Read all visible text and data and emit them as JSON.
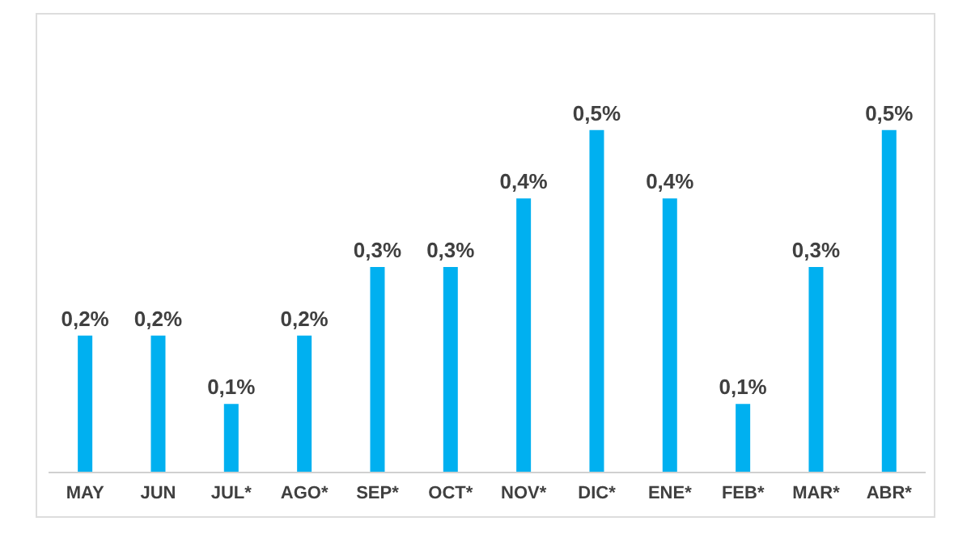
{
  "chart_data": {
    "type": "bar",
    "categories": [
      "MAY",
      "JUN",
      "JUL*",
      "AGO*",
      "SEP*",
      "OCT*",
      "NOV*",
      "DIC*",
      "ENE*",
      "FEB*",
      "MAR*",
      "ABR*"
    ],
    "values": [
      0.2,
      0.2,
      0.1,
      0.2,
      0.3,
      0.3,
      0.4,
      0.5,
      0.4,
      0.1,
      0.3,
      0.5
    ],
    "value_labels": [
      "0,2%",
      "0,2%",
      "0,1%",
      "0,2%",
      "0,3%",
      "0,3%",
      "0,4%",
      "0,5%",
      "0,4%",
      "0,1%",
      "0,3%",
      "0,5%"
    ],
    "color": "#00b0f0",
    "tick_labels": "x"
  }
}
